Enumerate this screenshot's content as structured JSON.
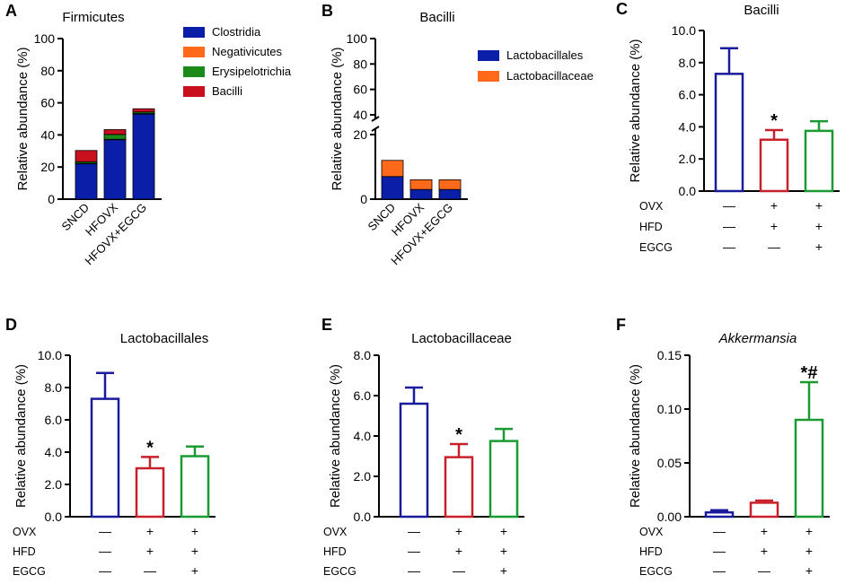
{
  "chart_data": [
    {
      "id": "A",
      "type": "bar",
      "stacked": true,
      "panel_label": "A",
      "title": "Firmicutes",
      "ylabel": "Relative abundance (%)",
      "ylim": [
        0,
        100
      ],
      "yticks": [
        "0",
        "20",
        "40",
        "60",
        "80",
        "100"
      ],
      "categories": [
        "SNCD",
        "HFOVX",
        "HFOVX+EGCG"
      ],
      "series": [
        {
          "name": "Clostridia",
          "color": "#0a1ea8",
          "values": [
            22,
            37,
            53
          ]
        },
        {
          "name": "Negativicutes",
          "color": "#ff6a1a",
          "values": [
            0.3,
            0.3,
            0.3
          ]
        },
        {
          "name": "Erysipelotrichia",
          "color": "#1a8a1a",
          "values": [
            1,
            3,
            1
          ]
        },
        {
          "name": "Bacilli",
          "color": "#c8101e",
          "values": [
            7,
            3,
            2
          ]
        }
      ],
      "legend_position": "top-right"
    },
    {
      "id": "B",
      "type": "bar",
      "stacked": true,
      "panel_label": "B",
      "title": "Bacilli",
      "ylabel": "Relative abundance (%)",
      "ylim": [
        0,
        100
      ],
      "axis_break": [
        20,
        40
      ],
      "yticks": [
        "0",
        "20",
        "40",
        "60",
        "80",
        "100"
      ],
      "categories": [
        "SNCD",
        "HFOVX",
        "HFOVX+EGCG"
      ],
      "series": [
        {
          "name": "Lactobacillales",
          "color": "#0a1ea8",
          "values": [
            7,
            3,
            3
          ]
        },
        {
          "name": "Lactobacillaceae",
          "color": "#ff6a1a",
          "values": [
            5,
            3,
            3
          ]
        }
      ],
      "legend_position": "top-right"
    },
    {
      "id": "C",
      "type": "bar",
      "panel_label": "C",
      "title": "Bacilli",
      "ylabel": "Relative abundance (%)",
      "ylim": [
        0,
        10
      ],
      "yticks": [
        "0.0",
        "2.0",
        "4.0",
        "6.0",
        "8.0",
        "10.0"
      ],
      "values": [
        7.3,
        3.2,
        3.75
      ],
      "errors": [
        1.6,
        0.6,
        0.6
      ],
      "bar_colors": [
        "#1a1a9c",
        "#c8202a",
        "#1a9a30"
      ],
      "annotations": [
        "",
        "*",
        ""
      ],
      "row_labels": [
        "OVX",
        "HFD",
        "EGCG"
      ],
      "row_values": [
        [
          "—",
          "+",
          "+"
        ],
        [
          "—",
          "+",
          "+"
        ],
        [
          "—",
          "—",
          "+"
        ]
      ]
    },
    {
      "id": "D",
      "type": "bar",
      "panel_label": "D",
      "title": "Lactobacillales",
      "ylabel": "Relative abundance (%)",
      "ylim": [
        0,
        10
      ],
      "yticks": [
        "0.0",
        "2.0",
        "4.0",
        "6.0",
        "8.0",
        "10.0"
      ],
      "values": [
        7.3,
        3.0,
        3.75
      ],
      "errors": [
        1.6,
        0.7,
        0.6
      ],
      "bar_colors": [
        "#1a1a9c",
        "#c8202a",
        "#1a9a30"
      ],
      "annotations": [
        "",
        "*",
        ""
      ],
      "row_labels": [
        "OVX",
        "HFD",
        "EGCG"
      ],
      "row_values": [
        [
          "—",
          "+",
          "+"
        ],
        [
          "—",
          "+",
          "+"
        ],
        [
          "—",
          "—",
          "+"
        ]
      ]
    },
    {
      "id": "E",
      "type": "bar",
      "panel_label": "E",
      "title": "Lactobacillaceae",
      "ylabel": "Relative abundance (%)",
      "ylim": [
        0,
        8
      ],
      "yticks": [
        "0.0",
        "2.0",
        "4.0",
        "6.0",
        "8.0"
      ],
      "values": [
        5.6,
        2.95,
        3.75
      ],
      "errors": [
        0.8,
        0.65,
        0.6
      ],
      "bar_colors": [
        "#1a1a9c",
        "#c8202a",
        "#1a9a30"
      ],
      "annotations": [
        "",
        "*",
        ""
      ],
      "row_labels": [
        "OVX",
        "HFD",
        "EGCG"
      ],
      "row_values": [
        [
          "—",
          "+",
          "+"
        ],
        [
          "—",
          "+",
          "+"
        ],
        [
          "—",
          "—",
          "+"
        ]
      ]
    },
    {
      "id": "F",
      "type": "bar",
      "panel_label": "F",
      "title": "Akkermansia",
      "title_italic": true,
      "ylabel": "Relative abundance (%)",
      "ylim": [
        0,
        0.15
      ],
      "yticks": [
        "0.00",
        "0.05",
        "0.10",
        "0.15"
      ],
      "values": [
        0.004,
        0.013,
        0.09
      ],
      "errors": [
        0.002,
        0.002,
        0.035
      ],
      "bar_colors": [
        "#1a1a9c",
        "#c8202a",
        "#1a9a30"
      ],
      "annotations": [
        "",
        "",
        "*#"
      ],
      "row_labels": [
        "OVX",
        "HFD",
        "EGCG"
      ],
      "row_values": [
        [
          "—",
          "+",
          "+"
        ],
        [
          "—",
          "+",
          "+"
        ],
        [
          "—",
          "—",
          "+"
        ]
      ]
    }
  ]
}
